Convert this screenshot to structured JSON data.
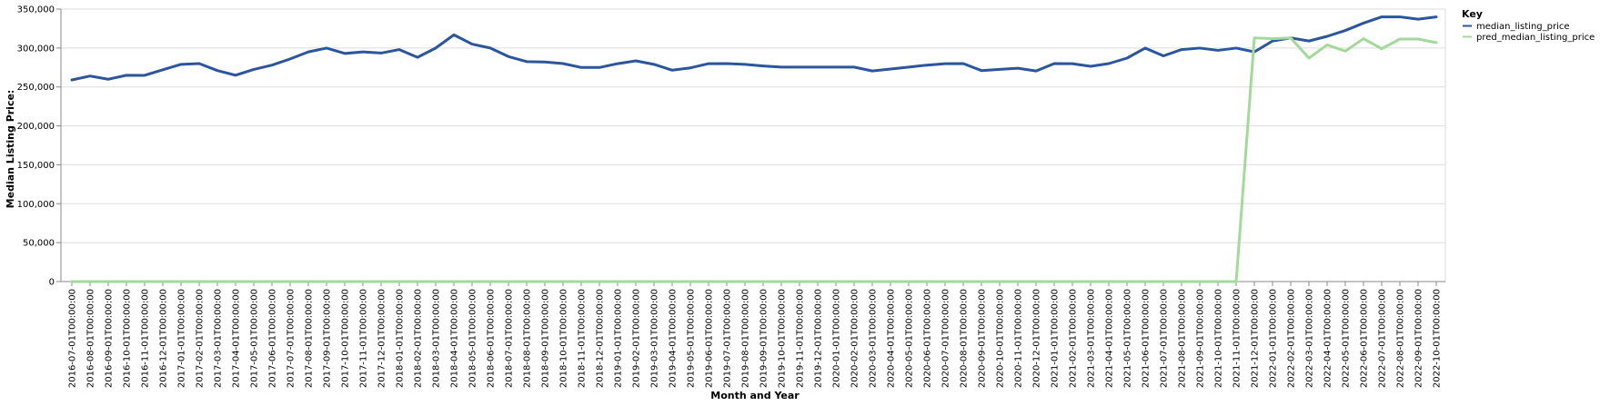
{
  "chart_data": {
    "type": "line",
    "xlabel": "Month and Year",
    "ylabel": "Median Listing Price:",
    "ylim": [
      0,
      350000
    ],
    "yticks": [
      0,
      50000,
      100000,
      150000,
      200000,
      250000,
      300000,
      350000
    ],
    "grid": true,
    "legend": {
      "title": "Key",
      "placement": "right"
    },
    "categories": [
      "2016-07-01T00:00:00",
      "2016-08-01T00:00:00",
      "2016-09-01T00:00:00",
      "2016-10-01T00:00:00",
      "2016-11-01T00:00:00",
      "2016-12-01T00:00:00",
      "2017-01-01T00:00:00",
      "2017-02-01T00:00:00",
      "2017-03-01T00:00:00",
      "2017-04-01T00:00:00",
      "2017-05-01T00:00:00",
      "2017-06-01T00:00:00",
      "2017-07-01T00:00:00",
      "2017-08-01T00:00:00",
      "2017-09-01T00:00:00",
      "2017-10-01T00:00:00",
      "2017-11-01T00:00:00",
      "2017-12-01T00:00:00",
      "2018-01-01T00:00:00",
      "2018-02-01T00:00:00",
      "2018-03-01T00:00:00",
      "2018-04-01T00:00:00",
      "2018-05-01T00:00:00",
      "2018-06-01T00:00:00",
      "2018-07-01T00:00:00",
      "2018-08-01T00:00:00",
      "2018-09-01T00:00:00",
      "2018-10-01T00:00:00",
      "2018-11-01T00:00:00",
      "2018-12-01T00:00:00",
      "2019-01-01T00:00:00",
      "2019-02-01T00:00:00",
      "2019-03-01T00:00:00",
      "2019-04-01T00:00:00",
      "2019-05-01T00:00:00",
      "2019-06-01T00:00:00",
      "2019-07-01T00:00:00",
      "2019-08-01T00:00:00",
      "2019-09-01T00:00:00",
      "2019-10-01T00:00:00",
      "2019-11-01T00:00:00",
      "2019-12-01T00:00:00",
      "2020-01-01T00:00:00",
      "2020-02-01T00:00:00",
      "2020-03-01T00:00:00",
      "2020-04-01T00:00:00",
      "2020-05-01T00:00:00",
      "2020-06-01T00:00:00",
      "2020-07-01T00:00:00",
      "2020-08-01T00:00:00",
      "2020-09-01T00:00:00",
      "2020-10-01T00:00:00",
      "2020-11-01T00:00:00",
      "2020-12-01T00:00:00",
      "2021-01-01T00:00:00",
      "2021-02-01T00:00:00",
      "2021-03-01T00:00:00",
      "2021-04-01T00:00:00",
      "2021-05-01T00:00:00",
      "2021-06-01T00:00:00",
      "2021-07-01T00:00:00",
      "2021-08-01T00:00:00",
      "2021-09-01T00:00:00",
      "2021-10-01T00:00:00",
      "2021-11-01T00:00:00",
      "2021-12-01T00:00:00",
      "2022-01-01T00:00:00",
      "2022-02-01T00:00:00",
      "2022-03-01T00:00:00",
      "2022-04-01T00:00:00",
      "2022-05-01T00:00:00",
      "2022-06-01T00:00:00",
      "2022-07-01T00:00:00",
      "2022-08-01T00:00:00",
      "2022-09-01T00:00:00",
      "2022-10-01T00:00:00"
    ],
    "series": [
      {
        "name": "median_listing_price",
        "color": "#2b559c",
        "values": [
          259000,
          264000,
          259900,
          265000,
          264900,
          272000,
          279000,
          280000,
          271000,
          265000,
          272500,
          278000,
          286000,
          295000,
          299900,
          293000,
          295000,
          293500,
          298000,
          288000,
          300000,
          316900,
          305000,
          300000,
          289000,
          282500,
          282000,
          280000,
          275000,
          275000,
          279900,
          283500,
          279000,
          271500,
          274500,
          279900,
          280000,
          279000,
          277000,
          275500,
          275500,
          275500,
          275500,
          275500,
          270500,
          273000,
          275500,
          278000,
          279900,
          280000,
          271000,
          272500,
          274000,
          270500,
          280000,
          279900,
          276500,
          280000,
          287000,
          299900,
          289900,
          298000,
          299900,
          297000,
          299900,
          295000,
          309000,
          313000,
          309000,
          315000,
          322500,
          332000,
          340000,
          340000,
          337000,
          339900
        ]
      },
      {
        "name": "pred_median_listing_price",
        "color": "#a3d99a",
        "values": [
          0,
          0,
          0,
          0,
          0,
          0,
          0,
          0,
          0,
          0,
          0,
          0,
          0,
          0,
          0,
          0,
          0,
          0,
          0,
          0,
          0,
          0,
          0,
          0,
          0,
          0,
          0,
          0,
          0,
          0,
          0,
          0,
          0,
          0,
          0,
          0,
          0,
          0,
          0,
          0,
          0,
          0,
          0,
          0,
          0,
          0,
          0,
          0,
          0,
          0,
          0,
          0,
          0,
          0,
          0,
          0,
          0,
          0,
          0,
          0,
          0,
          0,
          0,
          0,
          0,
          313000,
          312000,
          313000,
          287000,
          304000,
          296000,
          312000,
          299000,
          311500,
          311500,
          307000
        ]
      }
    ]
  }
}
